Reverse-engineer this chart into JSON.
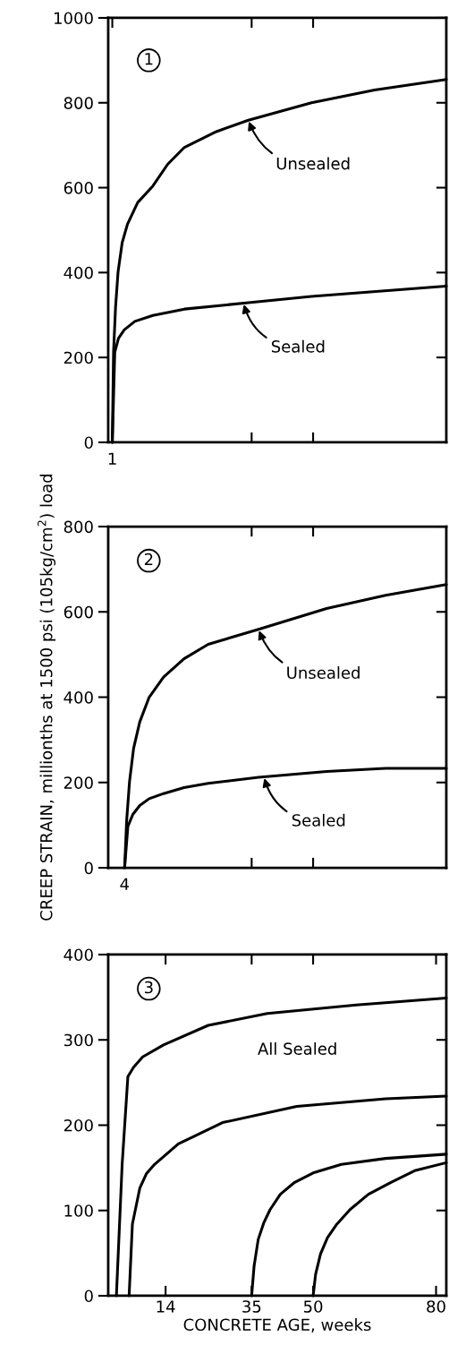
{
  "chart_data": [
    {
      "type": "line",
      "title": "1",
      "xlim": [
        0,
        82.5
      ],
      "ylim": [
        0,
        1000
      ],
      "tick_labels": "y",
      "xticks": [
        {
          "value": 1,
          "label": null
        },
        {
          "value": 35,
          "label": null
        },
        {
          "value": 50,
          "label": null
        }
      ],
      "yticks": [
        0,
        200,
        400,
        600,
        800,
        1000
      ],
      "series": [
        {
          "color": "#000000",
          "x": [
            1,
            1.3,
            1.8,
            2.4,
            3.4,
            4.7,
            7.2,
            10.9,
            14.5,
            18.6,
            26.4,
            34.2,
            49.6,
            65,
            82.5
          ],
          "values": [
            0,
            212,
            320,
            401,
            470,
            514,
            565,
            604,
            655,
            695,
            732,
            759,
            800,
            830,
            855
          ]
        },
        {
          "color": "#000000",
          "x": [
            1,
            1.6,
            2.5,
            3.9,
            6.5,
            10.9,
            18.6,
            34.2,
            49.6,
            82.5
          ],
          "values": [
            0,
            212,
            245,
            265,
            285,
            299,
            314,
            329,
            344,
            368
          ]
        }
      ],
      "annotations": [
        {
          "text": "1",
          "x": 1,
          "y": 0
        },
        {
          "text": "Unsealed",
          "x": 34.2,
          "y": 759
        },
        {
          "text": "Sealed",
          "x": 33,
          "y": 328
        }
      ]
    },
    {
      "type": "line",
      "title": "2",
      "ylabel": "CREEP STRAIN, millionths at 1500 psi (105kg/cm$^{2}$) load",
      "xlim": [
        0,
        82.5
      ],
      "ylim": [
        0,
        800
      ],
      "tick_labels": "y",
      "xticks": [
        {
          "value": 35,
          "label": null
        },
        {
          "value": 50,
          "label": null
        }
      ],
      "yticks": [
        0,
        200,
        400,
        600,
        800
      ],
      "series": [
        {
          "color": "#000000",
          "x": [
            4,
            4.5,
            5.2,
            6.2,
            7.7,
            10,
            13.5,
            18.5,
            24.4,
            36.7,
            53.3,
            67.7,
            82.5
          ],
          "values": [
            0,
            110,
            202,
            280,
            342,
            400,
            447,
            490,
            524,
            559,
            608,
            639,
            664
          ]
        },
        {
          "color": "#000000",
          "x": [
            4,
            4.8,
            6,
            7.7,
            10,
            13.5,
            18.5,
            24.4,
            36.7,
            53.3,
            67.7,
            82.5
          ],
          "values": [
            0,
            97,
            125,
            146,
            162,
            174,
            188,
            198,
            212,
            226,
            233,
            233
          ]
        }
      ],
      "annotations": [
        {
          "text": "4",
          "x": 4,
          "y": 0
        },
        {
          "text": "Unsealed",
          "x": 36.7,
          "y": 559
        },
        {
          "text": "Sealed",
          "x": 38,
          "y": 213
        }
      ]
    },
    {
      "type": "line",
      "title": "3",
      "xlabel": "CONCRETE AGE, weeks",
      "xlim": [
        0,
        82.5
      ],
      "ylim": [
        0,
        400
      ],
      "xticks": [
        14,
        35,
        50,
        80
      ],
      "yticks": [
        0,
        100,
        200,
        300,
        400
      ],
      "series": [
        {
          "color": "#000000",
          "x": [
            2,
            3.4,
            4.8,
            6.2,
            8.4,
            13.5,
            24.4,
            38.8,
            60.5,
            82.5
          ],
          "values": [
            0,
            154,
            257,
            268,
            280,
            294,
            317,
            331,
            341,
            349
          ]
        },
        {
          "color": "#000000",
          "x": [
            5.1,
            5.9,
            7.7,
            9.3,
            11.3,
            17.1,
            27.9,
            46,
            67.7,
            82.5
          ],
          "values": [
            0,
            84,
            126,
            143,
            154,
            178,
            203,
            222,
            231,
            234
          ]
        },
        {
          "color": "#000000",
          "x": [
            35,
            35.6,
            36.6,
            38,
            39.5,
            42,
            45.5,
            50,
            56.9,
            67.7,
            82.5
          ],
          "values": [
            0,
            35,
            66,
            86,
            101,
            119,
            133,
            144,
            154,
            161,
            166
          ]
        },
        {
          "color": "#000000",
          "x": [
            50,
            50.6,
            51.8,
            53.5,
            55.8,
            59,
            63.5,
            69,
            75,
            82.5
          ],
          "values": [
            0,
            25,
            49,
            68,
            84,
            101,
            119,
            133,
            147,
            156
          ]
        }
      ],
      "annotations": [
        "All Sealed"
      ]
    }
  ]
}
